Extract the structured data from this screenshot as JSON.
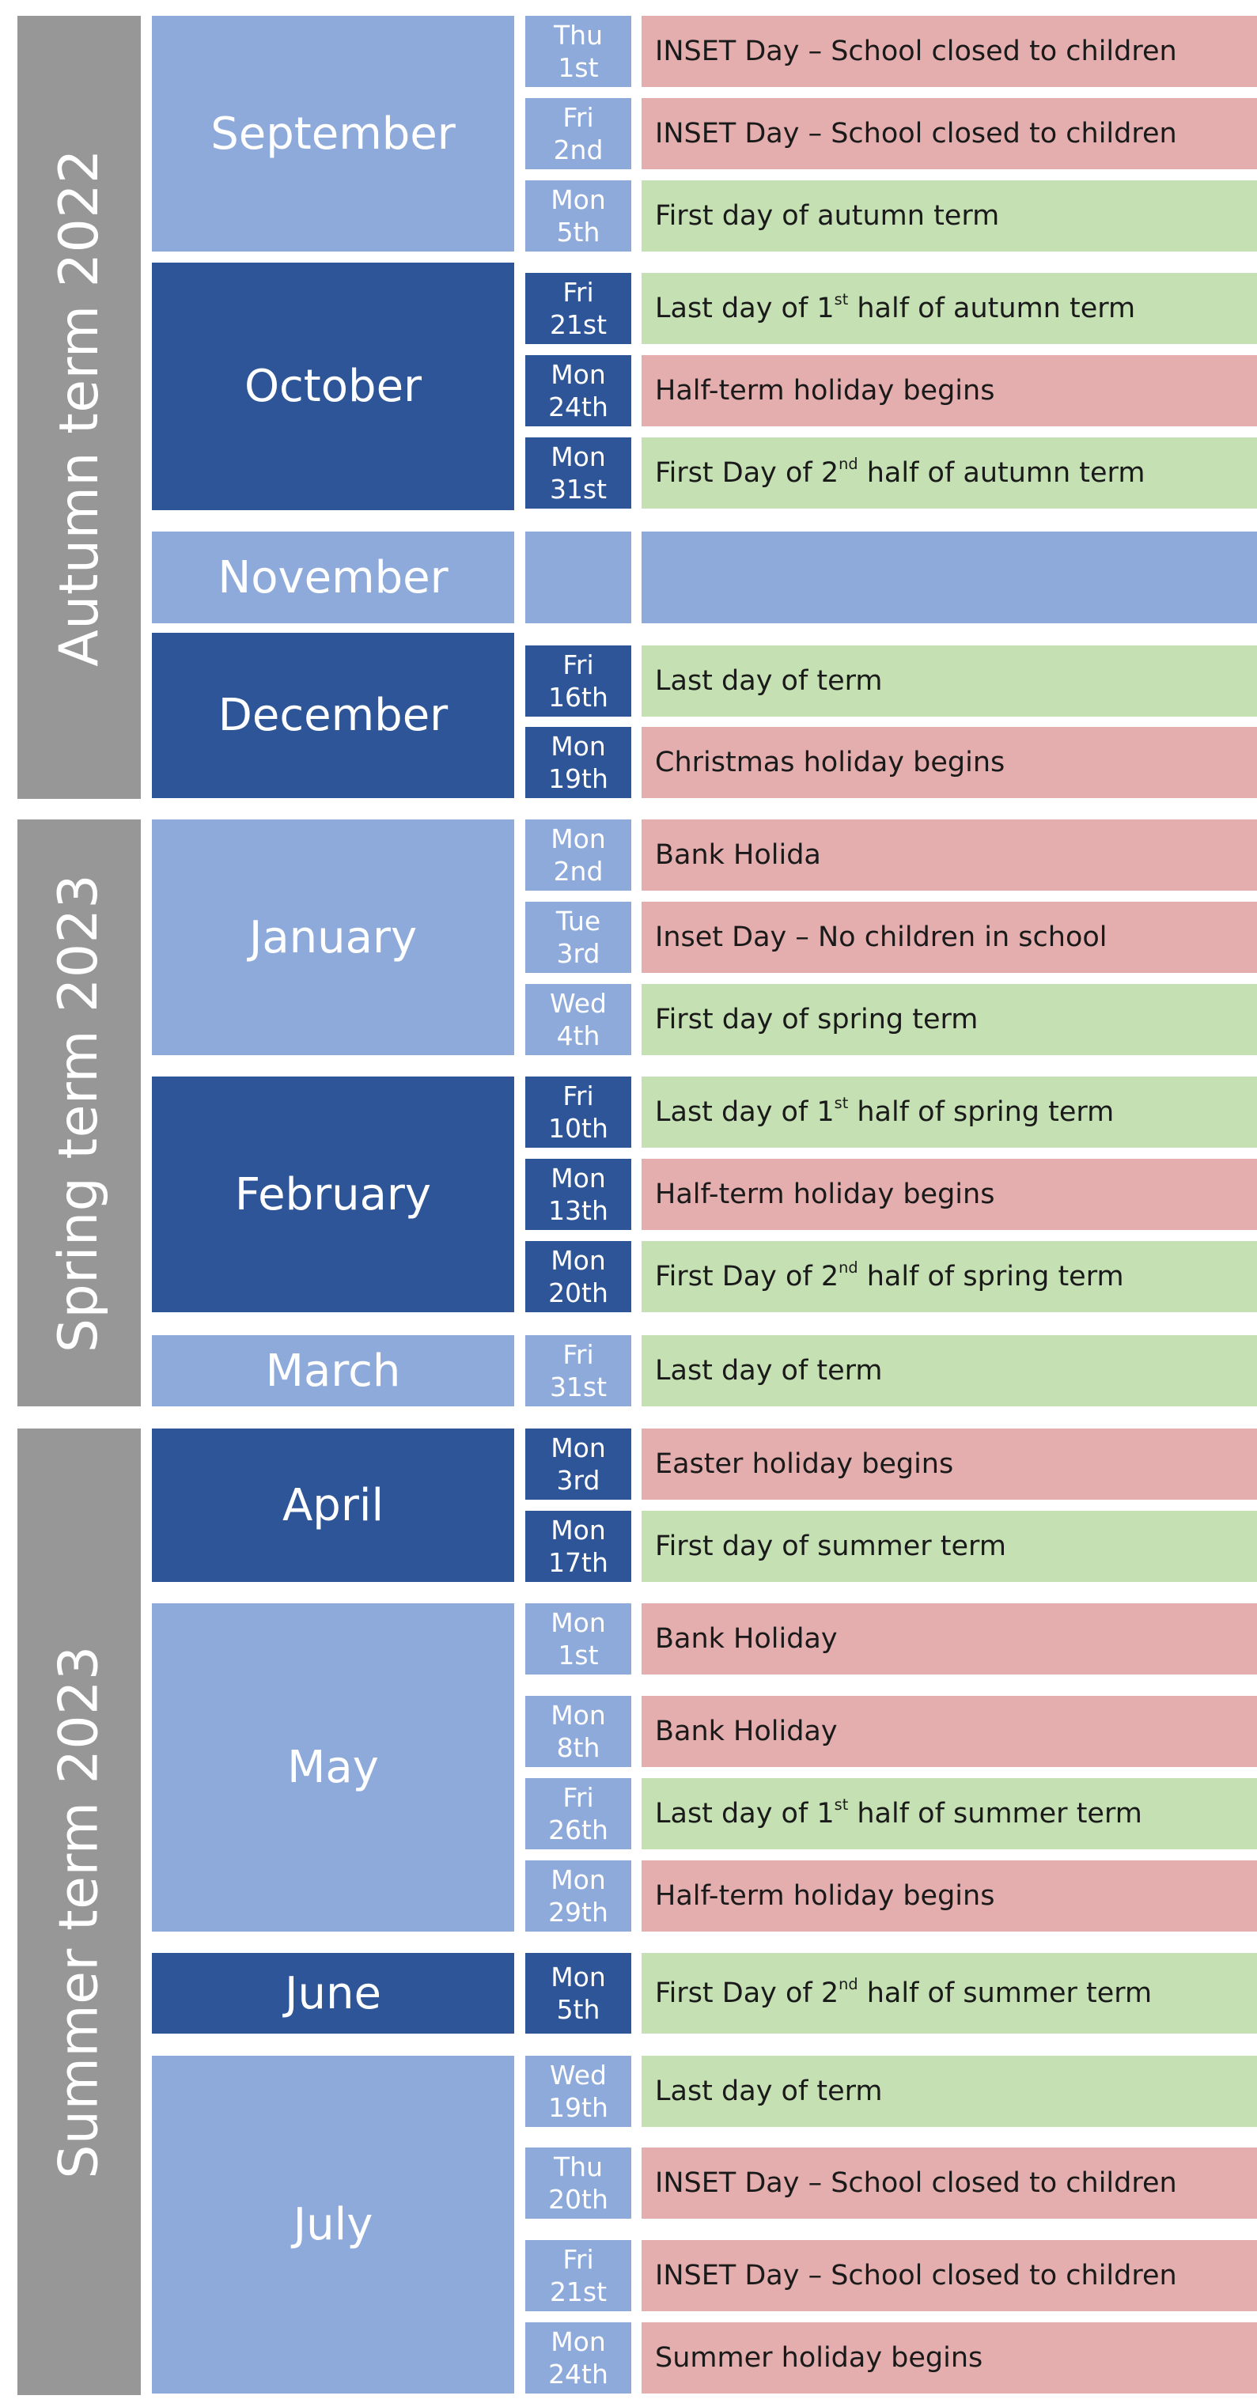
{
  "terms": [
    {
      "label": "Autumn term 2022"
    },
    {
      "label": "Spring term 2023"
    },
    {
      "label": "Summer term 2023"
    }
  ],
  "months": [
    {
      "name": "September",
      "shade": "light"
    },
    {
      "name": "October",
      "shade": "dark"
    },
    {
      "name": "November",
      "shade": "light"
    },
    {
      "name": "December",
      "shade": "dark"
    },
    {
      "name": "January",
      "shade": "light"
    },
    {
      "name": "February",
      "shade": "dark"
    },
    {
      "name": "March",
      "shade": "light"
    },
    {
      "name": "April",
      "shade": "dark"
    },
    {
      "name": "May",
      "shade": "light"
    },
    {
      "name": "June",
      "shade": "dark"
    },
    {
      "name": "July",
      "shade": "light"
    }
  ],
  "rows": [
    {
      "month": "September",
      "weekday": "Thu",
      "date": "1st",
      "event_text": "INSET Day – School closed to children",
      "type": "closure"
    },
    {
      "month": "September",
      "weekday": "Fri",
      "date": "2nd",
      "event_text": "INSET Day – School closed to children",
      "type": "closure"
    },
    {
      "month": "September",
      "weekday": "Mon",
      "date": "5th",
      "event_text": "First day of autumn term",
      "type": "open"
    },
    {
      "month": "October",
      "weekday": "Fri",
      "date": "21st",
      "event_text": "Last day of 1st half of autumn term",
      "sup_after": "Last day of 1",
      "type": "open"
    },
    {
      "month": "October",
      "weekday": "Mon",
      "date": "24th",
      "event_text": "Half-term holiday begins",
      "type": "closure"
    },
    {
      "month": "October",
      "weekday": "Mon",
      "date": "31st",
      "event_text": "First Day of 2nd half of autumn term",
      "sup_after": "First Day of 2",
      "type": "open"
    },
    {
      "month": "November",
      "weekday": "",
      "date": "",
      "event_text": "",
      "type": "none"
    },
    {
      "month": "December",
      "weekday": "Fri",
      "date": "16th",
      "event_text": "Last day of term",
      "type": "open"
    },
    {
      "month": "December",
      "weekday": "Mon",
      "date": "19th",
      "event_text": "Christmas holiday begins",
      "type": "closure"
    },
    {
      "month": "January",
      "weekday": "Mon",
      "date": "2nd",
      "event_text": "Bank Holida",
      "type": "closure"
    },
    {
      "month": "January",
      "weekday": "Tue",
      "date": "3rd",
      "event_text": "Inset Day – No children in school",
      "type": "closure"
    },
    {
      "month": "January",
      "weekday": "Wed",
      "date": "4th",
      "event_text": "First day of spring term",
      "type": "open"
    },
    {
      "month": "February",
      "weekday": "Fri",
      "date": "10th",
      "event_text": "Last day of 1st half of spring term",
      "sup_after": "Last day of 1",
      "type": "open"
    },
    {
      "month": "February",
      "weekday": "Mon",
      "date": "13th",
      "event_text": "Half-term holiday begins",
      "type": "closure"
    },
    {
      "month": "February",
      "weekday": "Mon",
      "date": "20th",
      "event_text": "First Day of 2nd half of spring term",
      "sup_after": "First Day of 2",
      "type": "open"
    },
    {
      "month": "March",
      "weekday": "Fri",
      "date": "31st",
      "event_text": "Last day of term",
      "type": "open"
    },
    {
      "month": "April",
      "weekday": "Mon",
      "date": "3rd",
      "event_text": "Easter holiday begins",
      "type": "closure"
    },
    {
      "month": "April",
      "weekday": "Mon",
      "date": "17th",
      "event_text": "First day of summer term",
      "type": "open"
    },
    {
      "month": "May",
      "weekday": "Mon",
      "date": "1st",
      "event_text": "Bank Holiday",
      "type": "closure"
    },
    {
      "month": "May",
      "weekday": "Mon",
      "date": "8th",
      "event_text": "Bank Holiday",
      "type": "closure"
    },
    {
      "month": "May",
      "weekday": "Fri",
      "date": "26th",
      "event_text": "Last day of 1st half of summer term",
      "sup_after": "Last day of 1",
      "type": "open"
    },
    {
      "month": "May",
      "weekday": "Mon",
      "date": "29th",
      "event_text": "Half-term holiday begins",
      "type": "closure"
    },
    {
      "month": "June",
      "weekday": "Mon",
      "date": "5th",
      "event_text": "First Day of 2nd half of summer term",
      "sup_after": "First Day of 2",
      "type": "open"
    },
    {
      "month": "July",
      "weekday": "Wed",
      "date": "19th",
      "event_text": "Last day of term",
      "type": "open"
    },
    {
      "month": "July",
      "weekday": "Thu",
      "date": "20th",
      "event_text": "INSET Day – School closed to children",
      "type": "closure"
    },
    {
      "month": "July",
      "weekday": "Fri",
      "date": "21st",
      "event_text": "INSET Day – School closed to children",
      "type": "closure"
    },
    {
      "month": "July",
      "weekday": "Mon",
      "date": "24th",
      "event_text": "Summer holiday begins",
      "type": "closure"
    }
  ],
  "colors": {
    "term_grey": "#979797",
    "light_blue": "#8eaadb",
    "dark_blue": "#2e5597",
    "closure_red": "#e4aeae",
    "open_green": "#c5e0b3"
  }
}
